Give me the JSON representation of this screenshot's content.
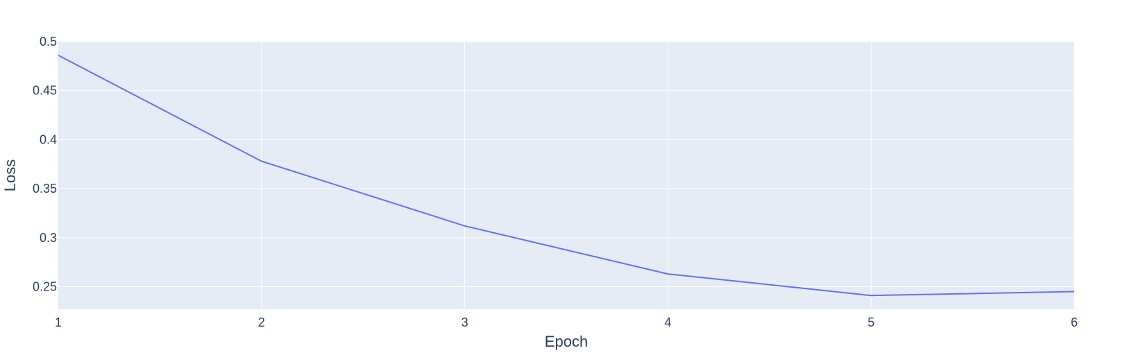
{
  "colors": {
    "plot_background": "#e5ecf6",
    "grid": "#ffffff",
    "line": "#636efa",
    "text": "#2a3f5f"
  },
  "chart_data": {
    "type": "line",
    "title": "",
    "xlabel": "Epoch",
    "ylabel": "Loss",
    "x": [
      1,
      2,
      3,
      4,
      5,
      6
    ],
    "series": [
      {
        "values": [
          0.486,
          0.378,
          0.312,
          0.263,
          0.241,
          0.245
        ]
      }
    ],
    "xlim": [
      1,
      6
    ],
    "ylim": [
      0.227,
      0.5
    ],
    "xticks": [
      1,
      2,
      3,
      4,
      5,
      6
    ],
    "yticks": [
      0.25,
      0.3,
      0.35,
      0.4,
      0.45,
      0.5
    ],
    "xtick_labels": [
      "1",
      "2",
      "3",
      "4",
      "5",
      "6"
    ],
    "ytick_labels": [
      "0.25",
      "0.3",
      "0.35",
      "0.4",
      "0.45",
      "0.5"
    ],
    "grid": true,
    "legend": "none"
  }
}
